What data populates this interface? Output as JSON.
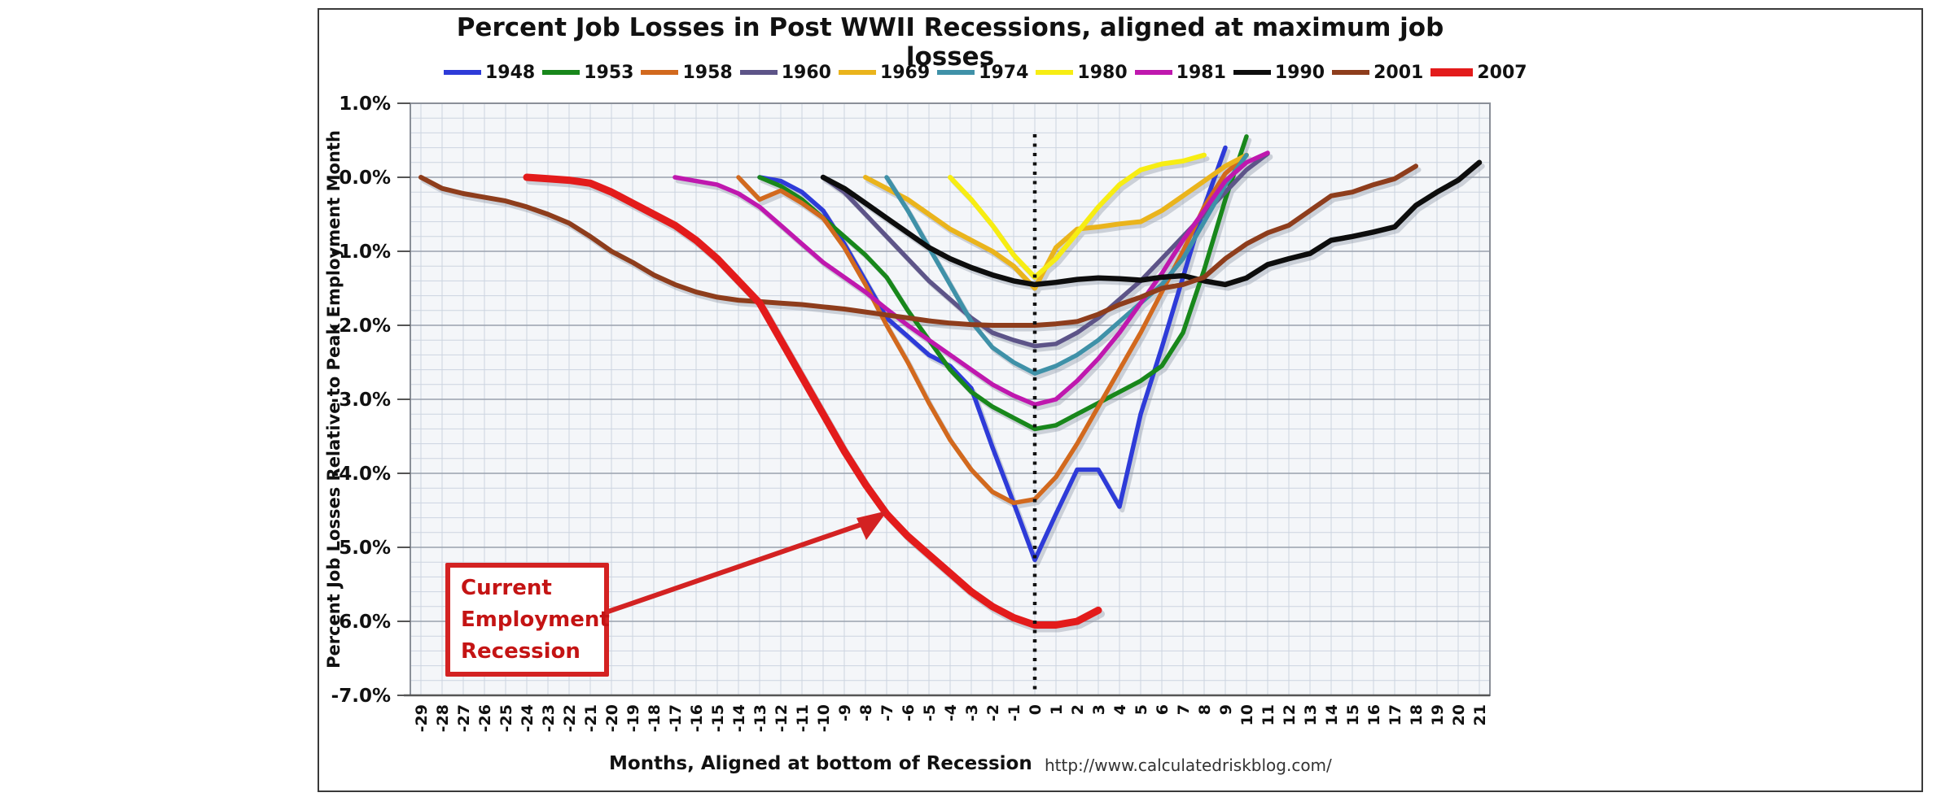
{
  "page": {
    "background": "#ffffff"
  },
  "chart_data": {
    "type": "line",
    "title": "Percent Job Losses in Post WWII Recessions, aligned at maximum job losses",
    "xlabel": "Months, Aligned at bottom of Recession",
    "ylabel": "Percent Job Losses Relative to Peak Employment Month",
    "source_url": "http://www.calculatedriskblog.com/",
    "annotation": {
      "line1": "Current",
      "line2": "Employment",
      "line3": "Recession",
      "arrow_points_to": "2007 series near month -7"
    },
    "x_range": [
      -29,
      21
    ],
    "y_range": [
      -7.0,
      1.0
    ],
    "x_tick_step": 1,
    "y_tick_step": 1.0,
    "y_minor_step": 0.2,
    "grid": true,
    "legend_position": "top",
    "zero_month_marker": "black dotted vertical line at month 0",
    "y_ticks": [
      "1.0%",
      "0.0%",
      "-1.0%",
      "-2.0%",
      "-3.0%",
      "-4.0%",
      "-5.0%",
      "-6.0%",
      "-7.0%"
    ],
    "x_ticks": [
      "-29",
      "-28",
      "-27",
      "-26",
      "-25",
      "-24",
      "-23",
      "-22",
      "-21",
      "-20",
      "-19",
      "-18",
      "-17",
      "-16",
      "-15",
      "-14",
      "-13",
      "-12",
      "-11",
      "-10",
      "-9",
      "-8",
      "-7",
      "-6",
      "-5",
      "-4",
      "-3",
      "-2",
      "-1",
      "0",
      "1",
      "2",
      "3",
      "4",
      "5",
      "6",
      "7",
      "8",
      "9",
      "10",
      "11",
      "12",
      "13",
      "14",
      "15",
      "16",
      "17",
      "18",
      "19",
      "20",
      "21"
    ],
    "colors": {
      "plot_bg": "#f4f6f9",
      "grid_minor": "#ccd4e0",
      "grid_major": "#99a1ad",
      "plot_border": "#8a8f98",
      "axis_line": "#555555",
      "annotation_red": "#d32222"
    },
    "series": [
      {
        "name": "1948",
        "color": "#2e3bd8",
        "width": 5.5,
        "points": [
          [
            -13,
            0
          ],
          [
            -12,
            -0.05
          ],
          [
            -11,
            -0.2
          ],
          [
            -10,
            -0.45
          ],
          [
            -9,
            -0.9
          ],
          [
            -8,
            -1.4
          ],
          [
            -7,
            -1.9
          ],
          [
            -6,
            -2.15
          ],
          [
            -5,
            -2.4
          ],
          [
            -4,
            -2.55
          ],
          [
            -3,
            -2.85
          ],
          [
            -2,
            -3.65
          ],
          [
            -1,
            -4.4
          ],
          [
            0,
            -5.17
          ],
          [
            1,
            -4.55
          ],
          [
            2,
            -3.95
          ],
          [
            3,
            -3.95
          ],
          [
            4,
            -4.45
          ],
          [
            5,
            -3.2
          ],
          [
            6,
            -2.3
          ],
          [
            7,
            -1.35
          ],
          [
            8,
            -0.4
          ],
          [
            9,
            0.4
          ]
        ]
      },
      {
        "name": "1953",
        "color": "#18871b",
        "width": 5.5,
        "points": [
          [
            -13,
            0
          ],
          [
            -12,
            -0.12
          ],
          [
            -11,
            -0.3
          ],
          [
            -10,
            -0.55
          ],
          [
            -9,
            -0.8
          ],
          [
            -8,
            -1.05
          ],
          [
            -7,
            -1.35
          ],
          [
            -6,
            -1.8
          ],
          [
            -5,
            -2.2
          ],
          [
            -4,
            -2.6
          ],
          [
            -3,
            -2.9
          ],
          [
            -2,
            -3.1
          ],
          [
            -1,
            -3.25
          ],
          [
            0,
            -3.4
          ],
          [
            1,
            -3.35
          ],
          [
            2,
            -3.2
          ],
          [
            3,
            -3.05
          ],
          [
            4,
            -2.9
          ],
          [
            5,
            -2.75
          ],
          [
            6,
            -2.55
          ],
          [
            7,
            -2.1
          ],
          [
            8,
            -1.25
          ],
          [
            9,
            -0.3
          ],
          [
            10,
            0.55
          ]
        ]
      },
      {
        "name": "1958",
        "color": "#d2691e",
        "width": 5.5,
        "points": [
          [
            -14,
            0
          ],
          [
            -13,
            -0.3
          ],
          [
            -12,
            -0.18
          ],
          [
            -11,
            -0.35
          ],
          [
            -10,
            -0.55
          ],
          [
            -9,
            -0.95
          ],
          [
            -8,
            -1.45
          ],
          [
            -7,
            -2.0
          ],
          [
            -6,
            -2.5
          ],
          [
            -5,
            -3.05
          ],
          [
            -4,
            -3.55
          ],
          [
            -3,
            -3.95
          ],
          [
            -2,
            -4.25
          ],
          [
            -1,
            -4.4
          ],
          [
            0,
            -4.35
          ],
          [
            1,
            -4.05
          ],
          [
            2,
            -3.6
          ],
          [
            3,
            -3.1
          ],
          [
            4,
            -2.6
          ],
          [
            5,
            -2.1
          ],
          [
            6,
            -1.55
          ],
          [
            7,
            -1.0
          ],
          [
            8,
            -0.4
          ],
          [
            9,
            0.05
          ],
          [
            10,
            0.3
          ]
        ]
      },
      {
        "name": "1960",
        "color": "#5d5488",
        "width": 5.5,
        "points": [
          [
            -10,
            0
          ],
          [
            -9,
            -0.2
          ],
          [
            -8,
            -0.5
          ],
          [
            -7,
            -0.8
          ],
          [
            -6,
            -1.1
          ],
          [
            -5,
            -1.4
          ],
          [
            -4,
            -1.65
          ],
          [
            -3,
            -1.9
          ],
          [
            -2,
            -2.1
          ],
          [
            -1,
            -2.2
          ],
          [
            0,
            -2.28
          ],
          [
            1,
            -2.25
          ],
          [
            2,
            -2.1
          ],
          [
            3,
            -1.9
          ],
          [
            4,
            -1.65
          ],
          [
            5,
            -1.4
          ],
          [
            6,
            -1.1
          ],
          [
            7,
            -0.8
          ],
          [
            8,
            -0.5
          ],
          [
            9,
            -0.2
          ],
          [
            10,
            0.1
          ],
          [
            11,
            0.32
          ]
        ]
      },
      {
        "name": "1969",
        "color": "#eab41c",
        "width": 6,
        "points": [
          [
            -8,
            0
          ],
          [
            -7,
            -0.15
          ],
          [
            -6,
            -0.3
          ],
          [
            -5,
            -0.5
          ],
          [
            -4,
            -0.7
          ],
          [
            -3,
            -0.85
          ],
          [
            -2,
            -1.0
          ],
          [
            -1,
            -1.2
          ],
          [
            0,
            -1.5
          ],
          [
            1,
            -0.95
          ],
          [
            2,
            -0.7
          ],
          [
            3,
            -0.67
          ],
          [
            4,
            -0.63
          ],
          [
            5,
            -0.6
          ],
          [
            6,
            -0.45
          ],
          [
            7,
            -0.25
          ],
          [
            8,
            -0.05
          ],
          [
            9,
            0.15
          ],
          [
            10,
            0.3
          ]
        ]
      },
      {
        "name": "1974",
        "color": "#3f91a8",
        "width": 5.5,
        "points": [
          [
            -7,
            0
          ],
          [
            -6,
            -0.45
          ],
          [
            -5,
            -0.95
          ],
          [
            -4,
            -1.45
          ],
          [
            -3,
            -1.95
          ],
          [
            -2,
            -2.3
          ],
          [
            -1,
            -2.5
          ],
          [
            0,
            -2.65
          ],
          [
            1,
            -2.55
          ],
          [
            2,
            -2.4
          ],
          [
            3,
            -2.2
          ],
          [
            4,
            -1.95
          ],
          [
            5,
            -1.7
          ],
          [
            6,
            -1.45
          ],
          [
            7,
            -1.1
          ],
          [
            8,
            -0.6
          ],
          [
            9,
            -0.1
          ],
          [
            10,
            0.3
          ]
        ]
      },
      {
        "name": "1980",
        "color": "#f7ed13",
        "width": 6,
        "points": [
          [
            -4,
            0
          ],
          [
            -3,
            -0.3
          ],
          [
            -2,
            -0.65
          ],
          [
            -1,
            -1.05
          ],
          [
            0,
            -1.35
          ],
          [
            1,
            -1.1
          ],
          [
            2,
            -0.75
          ],
          [
            3,
            -0.4
          ],
          [
            4,
            -0.1
          ],
          [
            5,
            0.1
          ],
          [
            6,
            0.18
          ],
          [
            7,
            0.22
          ],
          [
            8,
            0.3
          ]
        ]
      },
      {
        "name": "1981",
        "color": "#bf18ae",
        "width": 5.5,
        "points": [
          [
            -17,
            0
          ],
          [
            -16,
            -0.05
          ],
          [
            -15,
            -0.1
          ],
          [
            -14,
            -0.22
          ],
          [
            -13,
            -0.4
          ],
          [
            -12,
            -0.65
          ],
          [
            -11,
            -0.9
          ],
          [
            -10,
            -1.15
          ],
          [
            -9,
            -1.35
          ],
          [
            -8,
            -1.55
          ],
          [
            -7,
            -1.78
          ],
          [
            -6,
            -2.0
          ],
          [
            -5,
            -2.2
          ],
          [
            -4,
            -2.4
          ],
          [
            -3,
            -2.6
          ],
          [
            -2,
            -2.8
          ],
          [
            -1,
            -2.95
          ],
          [
            0,
            -3.07
          ],
          [
            1,
            -3.0
          ],
          [
            2,
            -2.75
          ],
          [
            3,
            -2.45
          ],
          [
            4,
            -2.1
          ],
          [
            5,
            -1.7
          ],
          [
            6,
            -1.3
          ],
          [
            7,
            -0.85
          ],
          [
            8,
            -0.45
          ],
          [
            9,
            -0.05
          ],
          [
            10,
            0.2
          ],
          [
            11,
            0.33
          ]
        ]
      },
      {
        "name": "1990",
        "color": "#0d0d0d",
        "width": 6.5,
        "points": [
          [
            -10,
            0
          ],
          [
            -9,
            -0.15
          ],
          [
            -8,
            -0.35
          ],
          [
            -7,
            -0.55
          ],
          [
            -6,
            -0.75
          ],
          [
            -5,
            -0.95
          ],
          [
            -4,
            -1.1
          ],
          [
            -3,
            -1.22
          ],
          [
            -2,
            -1.32
          ],
          [
            -1,
            -1.4
          ],
          [
            0,
            -1.45
          ],
          [
            1,
            -1.42
          ],
          [
            2,
            -1.38
          ],
          [
            3,
            -1.36
          ],
          [
            4,
            -1.37
          ],
          [
            5,
            -1.39
          ],
          [
            6,
            -1.35
          ],
          [
            7,
            -1.33
          ],
          [
            8,
            -1.4
          ],
          [
            9,
            -1.45
          ],
          [
            10,
            -1.36
          ],
          [
            11,
            -1.18
          ],
          [
            12,
            -1.1
          ],
          [
            13,
            -1.03
          ],
          [
            14,
            -0.85
          ],
          [
            15,
            -0.8
          ],
          [
            16,
            -0.74
          ],
          [
            17,
            -0.67
          ],
          [
            18,
            -0.38
          ],
          [
            19,
            -0.2
          ],
          [
            20,
            -0.04
          ],
          [
            21,
            0.2
          ]
        ]
      },
      {
        "name": "2001",
        "color": "#8e3d1c",
        "width": 6,
        "points": [
          [
            -29,
            0
          ],
          [
            -28,
            -0.15
          ],
          [
            -27,
            -0.22
          ],
          [
            -26,
            -0.27
          ],
          [
            -25,
            -0.32
          ],
          [
            -24,
            -0.4
          ],
          [
            -23,
            -0.5
          ],
          [
            -22,
            -0.62
          ],
          [
            -21,
            -0.8
          ],
          [
            -20,
            -1.0
          ],
          [
            -19,
            -1.15
          ],
          [
            -18,
            -1.32
          ],
          [
            -17,
            -1.45
          ],
          [
            -16,
            -1.55
          ],
          [
            -15,
            -1.62
          ],
          [
            -14,
            -1.66
          ],
          [
            -13,
            -1.68
          ],
          [
            -12,
            -1.7
          ],
          [
            -11,
            -1.72
          ],
          [
            -10,
            -1.75
          ],
          [
            -9,
            -1.78
          ],
          [
            -8,
            -1.82
          ],
          [
            -7,
            -1.86
          ],
          [
            -6,
            -1.9
          ],
          [
            -5,
            -1.94
          ],
          [
            -4,
            -1.97
          ],
          [
            -3,
            -1.99
          ],
          [
            -2,
            -2.0
          ],
          [
            -1,
            -2.0
          ],
          [
            0,
            -2.0
          ],
          [
            1,
            -1.98
          ],
          [
            2,
            -1.95
          ],
          [
            3,
            -1.85
          ],
          [
            4,
            -1.72
          ],
          [
            5,
            -1.62
          ],
          [
            6,
            -1.5
          ],
          [
            7,
            -1.45
          ],
          [
            8,
            -1.35
          ],
          [
            9,
            -1.1
          ],
          [
            10,
            -0.9
          ],
          [
            11,
            -0.75
          ],
          [
            12,
            -0.65
          ],
          [
            13,
            -0.45
          ],
          [
            14,
            -0.25
          ],
          [
            15,
            -0.2
          ],
          [
            16,
            -0.1
          ],
          [
            17,
            -0.02
          ],
          [
            18,
            0.15
          ]
        ]
      },
      {
        "name": "2007",
        "color": "#e31b1b",
        "width": 9,
        "points": [
          [
            -24,
            0
          ],
          [
            -23,
            -0.02
          ],
          [
            -22,
            -0.04
          ],
          [
            -21,
            -0.08
          ],
          [
            -20,
            -0.2
          ],
          [
            -19,
            -0.35
          ],
          [
            -18,
            -0.5
          ],
          [
            -17,
            -0.65
          ],
          [
            -16,
            -0.85
          ],
          [
            -15,
            -1.1
          ],
          [
            -14,
            -1.4
          ],
          [
            -13,
            -1.7
          ],
          [
            -12,
            -2.2
          ],
          [
            -11,
            -2.7
          ],
          [
            -10,
            -3.2
          ],
          [
            -9,
            -3.7
          ],
          [
            -8,
            -4.15
          ],
          [
            -7,
            -4.55
          ],
          [
            -6,
            -4.85
          ],
          [
            -5,
            -5.1
          ],
          [
            -4,
            -5.35
          ],
          [
            -3,
            -5.6
          ],
          [
            -2,
            -5.8
          ],
          [
            -1,
            -5.95
          ],
          [
            0,
            -6.05
          ],
          [
            1,
            -6.05
          ],
          [
            2,
            -6.0
          ],
          [
            3,
            -5.85
          ]
        ]
      }
    ]
  }
}
